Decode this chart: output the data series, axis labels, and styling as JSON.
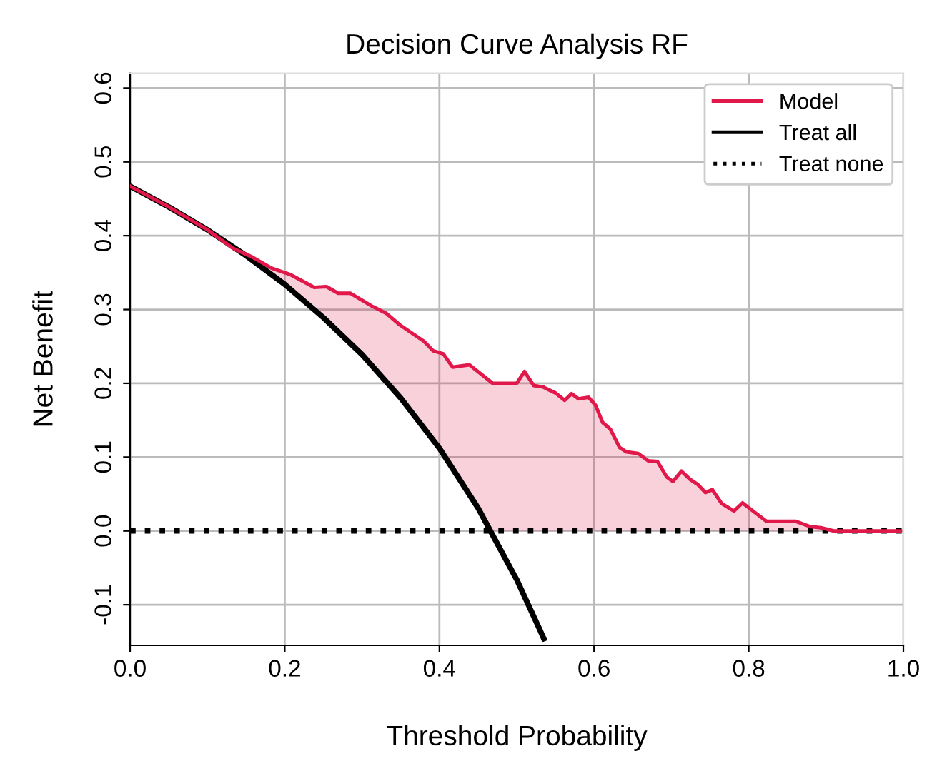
{
  "chart_data": {
    "type": "line",
    "title": "Decision Curve Analysis RF",
    "xlabel": "Threshold Probability",
    "ylabel": "Net Benefit",
    "xlim": [
      0,
      1.0
    ],
    "ylim": [
      -0.155,
      0.62
    ],
    "xticks": [
      {
        "value": 0,
        "label": "0.0"
      },
      0.2,
      0.4,
      0.6,
      0.8,
      {
        "value": 1,
        "label": "1.0"
      }
    ],
    "yticks": [
      -0.1,
      {
        "value": 0,
        "label": "0.0"
      },
      0.1,
      0.2,
      0.3,
      0.4,
      0.5,
      0.6
    ],
    "grid": true,
    "legend": "top right",
    "series": [
      {
        "name": "Model",
        "color": "#e0194a",
        "line_style": "solid",
        "x": [
          0,
          0.05,
          0.1,
          0.133,
          0.158,
          0.183,
          0.208,
          0.238,
          0.254,
          0.269,
          0.285,
          0.312,
          0.331,
          0.349,
          0.38,
          0.392,
          0.405,
          0.417,
          0.439,
          0.469,
          0.5,
          0.51,
          0.522,
          0.534,
          0.55,
          0.562,
          0.571,
          0.58,
          0.593,
          0.602,
          0.611,
          0.621,
          0.633,
          0.642,
          0.657,
          0.67,
          0.682,
          0.694,
          0.702,
          0.713,
          0.724,
          0.734,
          0.744,
          0.753,
          0.765,
          0.781,
          0.792,
          0.808,
          0.823,
          0.861,
          0.879,
          0.895,
          0.91,
          0.996
        ],
        "values": [
          0.467,
          0.439,
          0.408,
          0.383,
          0.371,
          0.356,
          0.347,
          0.33,
          0.331,
          0.322,
          0.322,
          0.305,
          0.295,
          0.279,
          0.257,
          0.244,
          0.24,
          0.222,
          0.225,
          0.2,
          0.2,
          0.216,
          0.197,
          0.195,
          0.187,
          0.177,
          0.186,
          0.179,
          0.181,
          0.17,
          0.147,
          0.138,
          0.113,
          0.107,
          0.105,
          0.095,
          0.094,
          0.073,
          0.067,
          0.081,
          0.07,
          0.063,
          0.052,
          0.056,
          0.037,
          0.027,
          0.038,
          0.025,
          0.013,
          0.013,
          0.006,
          0.004,
          0,
          0
        ],
        "lower": [
          0.467,
          0.439,
          0.408,
          0.383,
          0.367,
          0.348,
          0.327,
          0.301,
          0.286,
          0.271,
          0.255,
          0.225,
          0.203,
          0.181,
          0.14,
          0.123,
          0.104,
          0.086,
          0.05,
          0,
          0,
          0,
          0,
          0,
          0,
          0,
          0,
          0,
          0,
          0,
          0,
          0,
          0,
          0,
          0,
          0,
          0,
          0,
          0,
          0,
          0,
          0,
          0,
          0,
          0,
          0,
          0,
          0,
          0,
          0,
          0,
          0,
          0,
          0
        ],
        "upper": [
          0.467,
          0.439,
          0.408,
          0.383,
          0.371,
          0.356,
          0.347,
          0.33,
          0.331,
          0.322,
          0.322,
          0.305,
          0.295,
          0.279,
          0.257,
          0.244,
          0.24,
          0.222,
          0.225,
          0.2,
          0.2,
          0.216,
          0.197,
          0.195,
          0.187,
          0.177,
          0.186,
          0.179,
          0.181,
          0.17,
          0.147,
          0.138,
          0.113,
          0.107,
          0.105,
          0.095,
          0.094,
          0.073,
          0.067,
          0.081,
          0.07,
          0.063,
          0.052,
          0.056,
          0.037,
          0.027,
          0.038,
          0.025,
          0.013,
          0.013,
          0.006,
          0.004,
          0,
          0
        ]
      },
      {
        "name": "Treat all",
        "color": "#000000",
        "line_style": "solid",
        "x": [
          0,
          0.05,
          0.1,
          0.15,
          0.2,
          0.25,
          0.3,
          0.35,
          0.4,
          0.45,
          0.5,
          0.53,
          0.535
        ],
        "values": [
          0.467,
          0.439,
          0.408,
          0.373,
          0.334,
          0.289,
          0.239,
          0.18,
          0.112,
          0.031,
          -0.066,
          -0.134,
          -0.146
        ]
      },
      {
        "name": "Treat none",
        "color": "#000000",
        "line_style": "dotted",
        "x": [
          0,
          1.0
        ],
        "values": [
          0,
          0
        ]
      }
    ]
  }
}
